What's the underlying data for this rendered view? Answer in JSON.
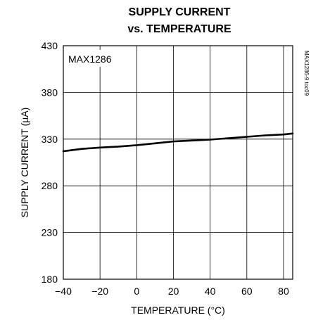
{
  "chart_data": {
    "type": "line",
    "title_lines": [
      "SUPPLY CURRENT",
      "vs. TEMPERATURE"
    ],
    "xlabel": "TEMPERATURE (°C)",
    "ylabel": "SUPPLY CURRENT (µA)",
    "annotation": "MAX1286",
    "side_code": "MAX1286-9 toc09",
    "xlim": [
      -40,
      85
    ],
    "ylim": [
      180,
      430
    ],
    "x_ticks": [
      -40,
      -20,
      0,
      20,
      40,
      60,
      80
    ],
    "y_ticks": [
      180,
      230,
      280,
      330,
      380,
      430
    ],
    "grid": true,
    "series": [
      {
        "x": [
          -40,
          -30,
          -20,
          -10,
          0,
          10,
          20,
          30,
          40,
          50,
          60,
          70,
          80,
          85
        ],
        "y": [
          317,
          319.5,
          321,
          322,
          323.5,
          325.5,
          327.5,
          328.5,
          329.5,
          331,
          332.5,
          334,
          335,
          336
        ]
      }
    ]
  }
}
